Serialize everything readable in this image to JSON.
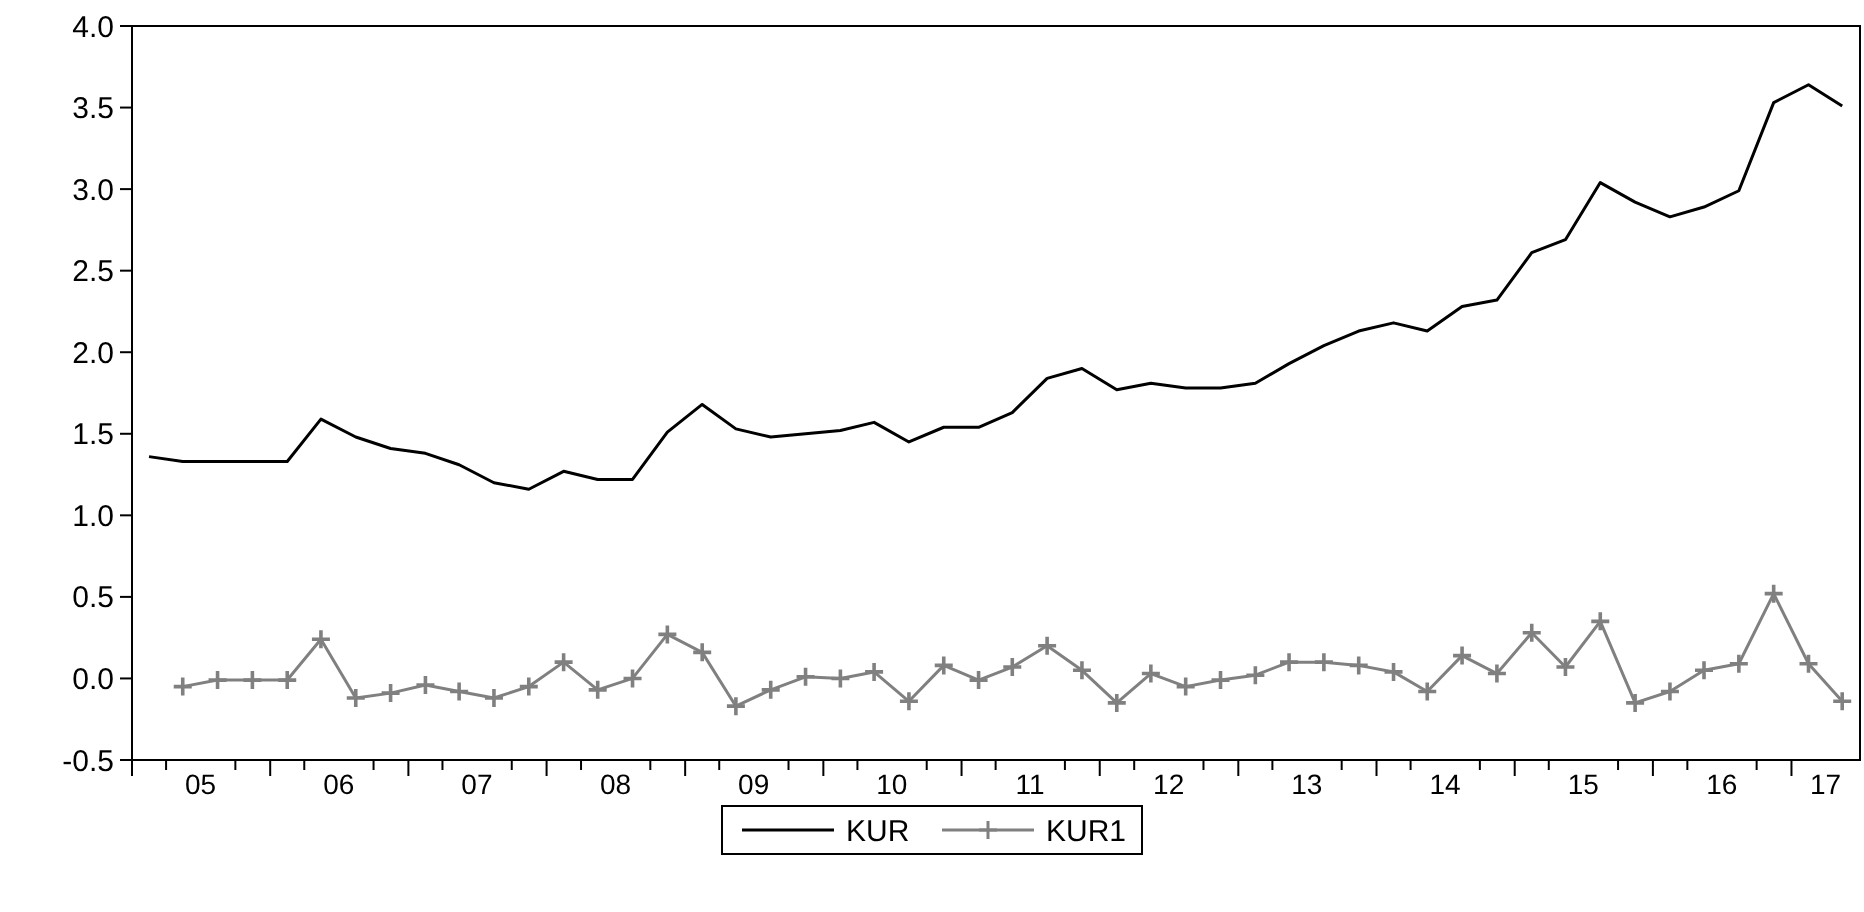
{
  "chart_data": {
    "type": "line",
    "x": [
      "2005-02-15",
      "2005-05-15",
      "2005-08-15",
      "2005-11-15",
      "2006-02-15",
      "2006-05-15",
      "2006-08-15",
      "2006-11-15",
      "2007-02-15",
      "2007-05-15",
      "2007-08-15",
      "2007-11-15",
      "2008-02-15",
      "2008-05-15",
      "2008-08-15",
      "2008-11-15",
      "2009-02-15",
      "2009-05-15",
      "2009-08-15",
      "2009-11-15",
      "2010-02-15",
      "2010-05-15",
      "2010-08-15",
      "2010-11-15",
      "2011-02-15",
      "2011-05-15",
      "2011-08-15",
      "2011-11-15",
      "2012-02-15",
      "2012-05-15",
      "2012-08-15",
      "2012-11-15",
      "2013-02-15",
      "2013-05-15",
      "2013-08-15",
      "2013-11-15",
      "2014-02-15",
      "2014-05-15",
      "2014-08-15",
      "2014-11-15",
      "2015-02-15",
      "2015-05-15",
      "2015-08-15",
      "2015-11-15",
      "2016-02-15",
      "2016-05-15",
      "2016-08-15",
      "2016-11-15",
      "2017-02-15",
      "2017-05-15"
    ],
    "series": [
      {
        "name": "KUR",
        "color": "#000000",
        "marker": "none",
        "values": [
          1.36,
          1.33,
          1.33,
          1.33,
          1.33,
          1.59,
          1.48,
          1.41,
          1.38,
          1.31,
          1.2,
          1.16,
          1.27,
          1.22,
          1.22,
          1.51,
          1.68,
          1.53,
          1.48,
          1.5,
          1.52,
          1.57,
          1.45,
          1.54,
          1.54,
          1.63,
          1.84,
          1.9,
          1.77,
          1.81,
          1.78,
          1.78,
          1.81,
          1.93,
          2.04,
          2.13,
          2.18,
          2.13,
          2.28,
          2.32,
          2.61,
          2.69,
          3.04,
          2.92,
          2.83,
          2.89,
          2.99,
          3.53,
          3.64,
          3.51
        ]
      },
      {
        "name": "KUR1",
        "color": "#808080",
        "marker": "cross",
        "values": [
          null,
          -0.05,
          -0.01,
          -0.01,
          -0.01,
          0.24,
          -0.12,
          -0.09,
          -0.04,
          -0.08,
          -0.12,
          -0.05,
          0.1,
          -0.07,
          0.0,
          0.27,
          0.16,
          -0.17,
          -0.07,
          0.01,
          0.0,
          0.04,
          -0.14,
          0.08,
          -0.01,
          0.07,
          0.2,
          0.05,
          -0.15,
          0.03,
          -0.05,
          -0.01,
          0.02,
          0.1,
          0.1,
          0.08,
          0.04,
          -0.08,
          0.14,
          0.03,
          0.28,
          0.07,
          0.35,
          -0.15,
          -0.08,
          0.05,
          0.09,
          0.52,
          0.09,
          -0.14
        ]
      }
    ],
    "xlim": [
      "2005-01-01",
      "2017-07-01"
    ],
    "xticks": [
      {
        "value": "2005-01-01",
        "label": null
      },
      {
        "value": "2005-04-01",
        "label": null
      },
      {
        "value": "2005-07-01",
        "label": "05"
      },
      {
        "value": "2005-10-01",
        "label": null
      },
      {
        "value": "2006-01-01",
        "label": null
      },
      {
        "value": "2006-04-01",
        "label": null
      },
      {
        "value": "2006-07-01",
        "label": "06"
      },
      {
        "value": "2006-10-01",
        "label": null
      },
      {
        "value": "2007-01-01",
        "label": null
      },
      {
        "value": "2007-04-01",
        "label": null
      },
      {
        "value": "2007-07-01",
        "label": "07"
      },
      {
        "value": "2007-10-01",
        "label": null
      },
      {
        "value": "2008-01-01",
        "label": null
      },
      {
        "value": "2008-04-01",
        "label": null
      },
      {
        "value": "2008-07-01",
        "label": "08"
      },
      {
        "value": "2008-10-01",
        "label": null
      },
      {
        "value": "2009-01-01",
        "label": null
      },
      {
        "value": "2009-04-01",
        "label": null
      },
      {
        "value": "2009-07-01",
        "label": "09"
      },
      {
        "value": "2009-10-01",
        "label": null
      },
      {
        "value": "2010-01-01",
        "label": null
      },
      {
        "value": "2010-04-01",
        "label": null
      },
      {
        "value": "2010-07-01",
        "label": "10"
      },
      {
        "value": "2010-10-01",
        "label": null
      },
      {
        "value": "2011-01-01",
        "label": null
      },
      {
        "value": "2011-04-01",
        "label": null
      },
      {
        "value": "2011-07-01",
        "label": "11"
      },
      {
        "value": "2011-10-01",
        "label": null
      },
      {
        "value": "2012-01-01",
        "label": null
      },
      {
        "value": "2012-04-01",
        "label": null
      },
      {
        "value": "2012-07-01",
        "label": "12"
      },
      {
        "value": "2012-10-01",
        "label": null
      },
      {
        "value": "2013-01-01",
        "label": null
      },
      {
        "value": "2013-04-01",
        "label": null
      },
      {
        "value": "2013-07-01",
        "label": "13"
      },
      {
        "value": "2013-10-01",
        "label": null
      },
      {
        "value": "2014-01-01",
        "label": null
      },
      {
        "value": "2014-04-01",
        "label": null
      },
      {
        "value": "2014-07-01",
        "label": "14"
      },
      {
        "value": "2014-10-01",
        "label": null
      },
      {
        "value": "2015-01-01",
        "label": null
      },
      {
        "value": "2015-04-01",
        "label": null
      },
      {
        "value": "2015-07-01",
        "label": "15"
      },
      {
        "value": "2015-10-01",
        "label": null
      },
      {
        "value": "2016-01-01",
        "label": null
      },
      {
        "value": "2016-04-01",
        "label": null
      },
      {
        "value": "2016-07-01",
        "label": "16"
      },
      {
        "value": "2016-10-01",
        "label": null
      },
      {
        "value": "2017-01-01",
        "label": null
      },
      {
        "value": "2017-04-01",
        "label": "17"
      }
    ],
    "ylim": [
      -0.5,
      4.0
    ],
    "yticks": [
      {
        "value": -0.5,
        "label": "-0.5"
      },
      {
        "value": 0,
        "label": "0.0"
      },
      {
        "value": 0.5,
        "label": "0.5"
      },
      {
        "value": 1,
        "label": "1.0"
      },
      {
        "value": 1.5,
        "label": "1.5"
      },
      {
        "value": 2,
        "label": "2.0"
      },
      {
        "value": 2.5,
        "label": "2.5"
      },
      {
        "value": 3,
        "label": "3.0"
      },
      {
        "value": 3.5,
        "label": "3.5"
      },
      {
        "value": 4,
        "label": "4.0"
      }
    ],
    "legend": "bottom",
    "line_style": "solid"
  }
}
